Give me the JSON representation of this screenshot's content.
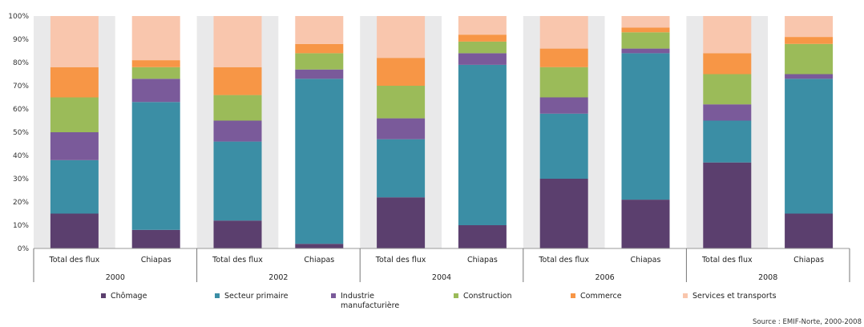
{
  "chart_data": {
    "type": "bar",
    "stacked": true,
    "years": [
      "2000",
      "2002",
      "2004",
      "2006",
      "2008"
    ],
    "categories": [
      "Total des flux",
      "Chiapas",
      "Total des flux",
      "Chiapas",
      "Total des flux",
      "Chiapas",
      "Total des flux",
      "Chiapas",
      "Total des flux",
      "Chiapas"
    ],
    "yticks": [
      "0%",
      "10%",
      "20%",
      "30%",
      "40%",
      "50%",
      "60%",
      "70%",
      "80%",
      "90%",
      "100%"
    ],
    "ylim": [
      0,
      100
    ],
    "legend_position": "bottom",
    "series": [
      {
        "name": "Chômage",
        "color": "#5b3f6e",
        "values": [
          15,
          8,
          12,
          2,
          22,
          10,
          30,
          21,
          37,
          15
        ]
      },
      {
        "name": "Secteur primaire",
        "color": "#3b8ea5",
        "values": [
          23,
          55,
          34,
          71,
          25,
          69,
          28,
          63,
          18,
          58
        ]
      },
      {
        "name": "Industrie manufacturière",
        "color": "#7a5a9a",
        "values": [
          12,
          10,
          9,
          4,
          9,
          5,
          7,
          2,
          7,
          2
        ]
      },
      {
        "name": "Construction",
        "color": "#9bbb59",
        "values": [
          15,
          5,
          11,
          7,
          14,
          5,
          13,
          7,
          13,
          13
        ]
      },
      {
        "name": "Commerce",
        "color": "#f79646",
        "values": [
          13,
          3,
          12,
          4,
          12,
          3,
          8,
          2,
          9,
          3
        ]
      },
      {
        "name": "Services et transports",
        "color": "#f9c6ad",
        "values": [
          22,
          19,
          22,
          12,
          18,
          8,
          14,
          5,
          16,
          9
        ]
      }
    ],
    "legend_labels": [
      [
        "Chômage"
      ],
      [
        "Secteur primaire"
      ],
      [
        "Industrie",
        "manufacturière"
      ],
      [
        "Construction"
      ],
      [
        "Commerce"
      ],
      [
        "Services et transports"
      ]
    ]
  },
  "source_note": "Source : EMIF-Norte, 2000-2008"
}
